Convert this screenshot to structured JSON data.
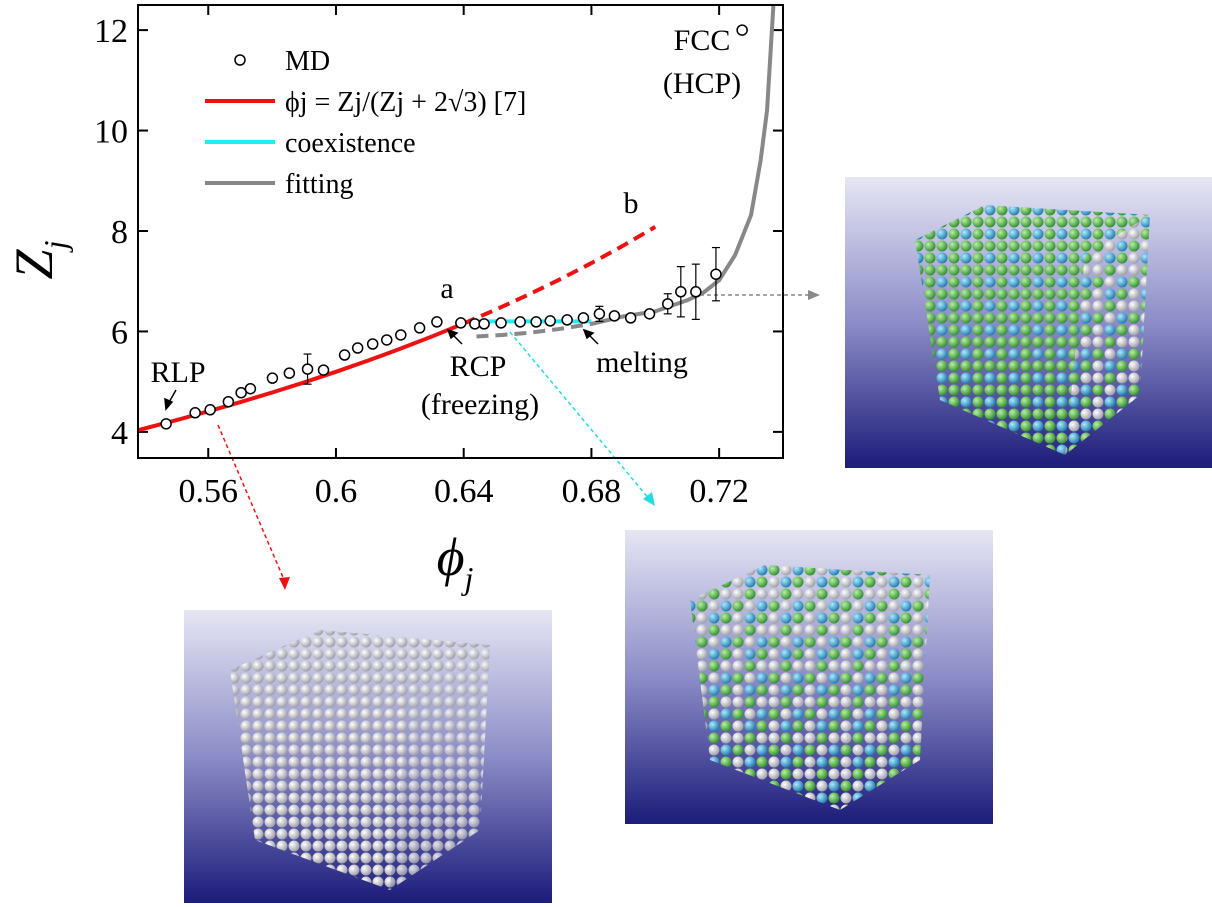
{
  "chart_data": {
    "type": "line",
    "x_label": {
      "main": "ϕ",
      "sub": "j"
    },
    "y_label": {
      "main": "Z",
      "sub": "j"
    },
    "xlim": [
      0.538,
      0.74
    ],
    "xticks": [
      0.56,
      0.6,
      0.64,
      0.68,
      0.72
    ],
    "ylim": [
      3.48,
      12.5
    ],
    "yticks": [
      4,
      6,
      8,
      10,
      12
    ],
    "series": [
      {
        "name": "MD",
        "kind": "markers",
        "color": "#000000",
        "x": [
          0.5468,
          0.5559,
          0.5606,
          0.5663,
          0.5703,
          0.5732,
          0.5801,
          0.5854,
          0.5911,
          0.5961,
          0.6027,
          0.6068,
          0.6115,
          0.6159,
          0.6203,
          0.6262,
          0.6316,
          0.6391,
          0.6435,
          0.6464,
          0.6517,
          0.6577,
          0.6627,
          0.6671,
          0.6724,
          0.6775,
          0.6825,
          0.6872,
          0.6923,
          0.6982,
          0.7039,
          0.708,
          0.7127,
          0.719,
          0.7272
        ],
        "values": [
          4.16,
          4.38,
          4.44,
          4.6,
          4.78,
          4.86,
          5.07,
          5.17,
          5.25,
          5.23,
          5.53,
          5.67,
          5.75,
          5.83,
          5.93,
          6.07,
          6.19,
          6.17,
          6.15,
          6.15,
          6.17,
          6.19,
          6.19,
          6.21,
          6.23,
          6.27,
          6.35,
          6.31,
          6.27,
          6.35,
          6.55,
          6.79,
          6.79,
          7.14,
          12.0
        ],
        "errors": [
          null,
          null,
          null,
          null,
          null,
          null,
          null,
          null,
          0.3,
          null,
          null,
          null,
          null,
          null,
          null,
          null,
          null,
          null,
          null,
          null,
          null,
          null,
          null,
          null,
          null,
          null,
          0.15,
          null,
          null,
          null,
          0.2,
          0.5,
          0.55,
          0.53,
          null
        ]
      },
      {
        "name": "ϕj = Zj/(Zj + 2√3)  [7]",
        "kind": "line",
        "line_style": "solid",
        "color": "#ee1111",
        "x": [
          0.538,
          0.55,
          0.56,
          0.57,
          0.58,
          0.59,
          0.6,
          0.61,
          0.62,
          0.63,
          0.64
        ],
        "values": [
          4.034,
          4.234,
          4.409,
          4.592,
          4.784,
          4.985,
          5.196,
          5.418,
          5.652,
          5.898,
          6.158
        ]
      },
      {
        "kind": "line",
        "line_style": "dashed",
        "color": "#ee1111",
        "x": [
          0.64,
          0.65,
          0.66,
          0.67,
          0.68,
          0.69,
          0.7
        ],
        "values": [
          6.158,
          6.433,
          6.724,
          7.033,
          7.361,
          7.71,
          8.083
        ]
      },
      {
        "name": "coexistence",
        "kind": "line",
        "line_style": "solid",
        "color": "#22eeee",
        "x": [
          0.644,
          0.66,
          0.67,
          0.68
        ],
        "values": [
          6.2,
          6.2,
          6.2,
          6.2
        ]
      },
      {
        "name": "fitting",
        "kind": "line",
        "line_style": "solid",
        "color": "#888888",
        "x": [
          0.68,
          0.69,
          0.7,
          0.71,
          0.715,
          0.72,
          0.725,
          0.73,
          0.733,
          0.735,
          0.737
        ],
        "values": [
          6.15,
          6.3,
          6.4,
          6.62,
          6.77,
          7.02,
          7.52,
          8.32,
          9.41,
          10.4,
          12.5
        ]
      },
      {
        "kind": "line",
        "line_style": "dashed",
        "color": "#888888",
        "x": [
          0.644,
          0.652,
          0.66,
          0.67,
          0.68
        ],
        "values": [
          5.9,
          5.93,
          5.97,
          6.05,
          6.15
        ]
      }
    ],
    "annotations": [
      "a",
      "b",
      "RLP",
      "RCP",
      "(freezing)",
      "melting",
      "FCC",
      "(HCP)"
    ]
  }
}
